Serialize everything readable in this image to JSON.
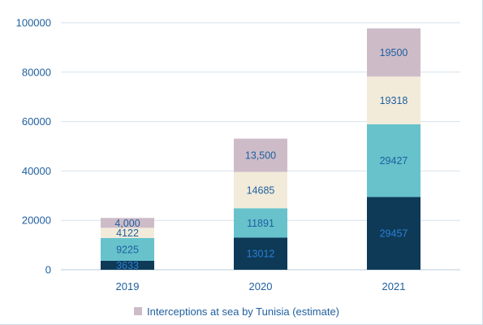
{
  "chart_data": {
    "type": "bar",
    "stacked": true,
    "categories": [
      "2019",
      "2020",
      "2021"
    ],
    "ylim": [
      0,
      100000
    ],
    "yticks": [
      0,
      20000,
      40000,
      60000,
      80000,
      100000
    ],
    "grid": true,
    "legend_position": "bottom",
    "legend_visible": [
      "Interceptions at sea by Tunisia (estimate)"
    ],
    "series": [
      {
        "color": "#0e3a57",
        "label_color": "#2a7fd4",
        "values": [
          3633,
          13012,
          29457
        ],
        "labels": [
          "3633",
          "13012",
          "29457"
        ]
      },
      {
        "color": "#67c2cc",
        "label_color": "#1f5f9e",
        "values": [
          9225,
          11891,
          29427
        ],
        "labels": [
          "9225",
          "11891",
          "29427"
        ]
      },
      {
        "color": "#f2ebda",
        "label_color": "#1f5f9e",
        "values": [
          4122,
          14685,
          19318
        ],
        "labels": [
          "4122",
          "14685",
          "19318"
        ]
      },
      {
        "name": "Interceptions at sea by Tunisia (estimate)",
        "color": "#cdbcc8",
        "label_color": "#1f5f9e",
        "values": [
          4000,
          13500,
          19500
        ],
        "labels": [
          "4,000",
          "13,500",
          "19500"
        ]
      }
    ]
  }
}
